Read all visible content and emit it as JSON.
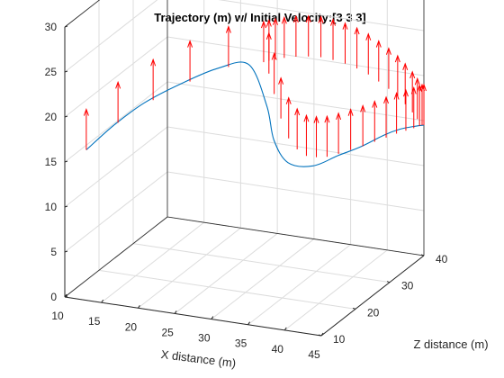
{
  "chart_data": {
    "type": "line",
    "subtype": "3d-trajectory-with-vector-arrows",
    "title": "Trajectory (m) w/ Initial Velocity:[3  3  3]",
    "xlabel": "X distance (m)",
    "ylabel": "Z distance (m)",
    "zlabel": "",
    "xlim": [
      10,
      45
    ],
    "ylim": [
      10,
      40
    ],
    "zlim": [
      0,
      30
    ],
    "x_ticks": [
      "10",
      "15",
      "20",
      "25",
      "30",
      "35",
      "40",
      "45"
    ],
    "y_ticks": [
      "10",
      "20",
      "30",
      "40"
    ],
    "z_ticks": [
      "0",
      "5",
      "10",
      "15",
      "20",
      "25",
      "30"
    ],
    "grid": true,
    "box": true,
    "colors": {
      "trajectory": "#0072BD",
      "arrows": "#FF0000",
      "grid": "#DCDCDC",
      "axis": "#262626"
    },
    "trajectory": {
      "x": [
        12,
        15.5,
        19,
        23,
        27,
        30,
        31.5,
        32,
        33,
        35,
        37,
        39,
        41,
        42.5,
        44,
        45
      ],
      "y": [
        12,
        12.5,
        14,
        16,
        18.5,
        21,
        23,
        24,
        26,
        29,
        32,
        34.5,
        37,
        38.5,
        39.5,
        40
      ],
      "z": [
        16,
        19,
        21.5,
        23.5,
        25,
        25,
        20,
        16,
        13,
        12,
        12.5,
        13,
        13.8,
        14.2,
        14.4,
        14.5
      ]
    },
    "arrows": {
      "dz": 4.5,
      "x": [
        12,
        16,
        20,
        24,
        28,
        31.3,
        31.6,
        31.9,
        32.3,
        32.8,
        33.4,
        34.1,
        34.9,
        35.8,
        36.8,
        37.9,
        39,
        40.1,
        41.2,
        42.2,
        43.1,
        43.9,
        44.5,
        45,
        31.7,
        32.2,
        32.9,
        33.8,
        34.8,
        35.8,
        36.8,
        37.8,
        38.8,
        39.8,
        40.7,
        41.6,
        42.4,
        43.1,
        43.8,
        44.3,
        44.8
      ],
      "y": [
        12,
        12.7,
        14.4,
        16.6,
        19.3,
        22.5,
        23.4,
        24.3,
        25.4,
        26.6,
        27.8,
        29,
        30.2,
        31.4,
        32.6,
        33.8,
        35,
        36.1,
        37.1,
        38,
        38.8,
        39.4,
        39.8,
        40,
        23.2,
        24,
        25.1,
        26.6,
        28.1,
        29.6,
        31,
        32.4,
        33.7,
        34.9,
        36,
        37,
        37.9,
        38.6,
        39.2,
        39.6,
        39.9
      ],
      "z": [
        16,
        19.3,
        21.8,
        23.7,
        25,
        25,
        23.5,
        21,
        18,
        15.5,
        14,
        13,
        12.6,
        12.4,
        12.5,
        12.7,
        12.9,
        13.2,
        13.5,
        13.8,
        14,
        14.2,
        14.4,
        14.5,
        25,
        25,
        24.9,
        24.7,
        24.4,
        24,
        23.4,
        22.7,
        21.9,
        21,
        20,
        19,
        18,
        17,
        16,
        15.2,
        14.5
      ]
    }
  }
}
